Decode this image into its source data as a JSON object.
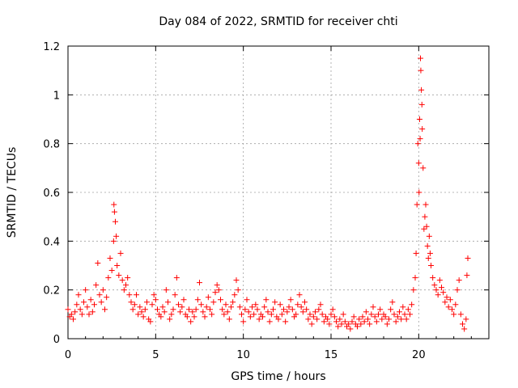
{
  "chart_data": {
    "type": "scatter",
    "title": "Day 084 of 2022, SRMTID for receiver chti",
    "xlabel": "GPS time / hours",
    "ylabel": "SRMTID / TECUs",
    "xlim": [
      0,
      24
    ],
    "ylim": [
      0,
      1.2
    ],
    "xticks": [
      0,
      5,
      10,
      15,
      20
    ],
    "xtick_labels": [
      "0",
      "5",
      "10",
      "15",
      "20"
    ],
    "yticks": [
      0,
      0.2,
      0.4,
      0.6,
      0.8,
      1.0,
      1.2
    ],
    "ytick_labels": [
      "0",
      "0.2",
      "0.4",
      "0.6",
      "0.8",
      "1",
      "1.2"
    ],
    "grid": true,
    "marker": "plus",
    "color": "#ff0000",
    "series": [
      {
        "name": "SRMTID",
        "x": [
          0.0,
          0.1,
          0.2,
          0.3,
          0.4,
          0.5,
          0.6,
          0.7,
          0.8,
          0.9,
          1.0,
          1.1,
          1.2,
          1.3,
          1.4,
          1.5,
          1.6,
          1.7,
          1.8,
          1.9,
          2.0,
          2.1,
          2.2,
          2.3,
          2.4,
          2.5,
          2.6,
          2.62,
          2.65,
          2.7,
          2.75,
          2.8,
          2.9,
          3.0,
          3.1,
          3.2,
          3.3,
          3.4,
          3.5,
          3.6,
          3.7,
          3.8,
          3.9,
          4.0,
          4.1,
          4.2,
          4.3,
          4.4,
          4.5,
          4.6,
          4.7,
          4.8,
          4.9,
          5.0,
          5.1,
          5.2,
          5.3,
          5.4,
          5.5,
          5.6,
          5.7,
          5.8,
          5.9,
          6.0,
          6.1,
          6.2,
          6.3,
          6.4,
          6.5,
          6.6,
          6.7,
          6.8,
          6.9,
          7.0,
          7.1,
          7.2,
          7.3,
          7.4,
          7.5,
          7.6,
          7.7,
          7.8,
          7.9,
          8.0,
          8.1,
          8.2,
          8.3,
          8.4,
          8.5,
          8.6,
          8.7,
          8.8,
          8.9,
          9.0,
          9.1,
          9.2,
          9.3,
          9.4,
          9.5,
          9.6,
          9.7,
          9.8,
          9.9,
          10.0,
          10.1,
          10.2,
          10.3,
          10.4,
          10.5,
          10.6,
          10.7,
          10.8,
          10.9,
          11.0,
          11.1,
          11.2,
          11.3,
          11.4,
          11.5,
          11.6,
          11.7,
          11.8,
          11.9,
          12.0,
          12.1,
          12.2,
          12.3,
          12.4,
          12.5,
          12.6,
          12.7,
          12.8,
          12.9,
          13.0,
          13.1,
          13.2,
          13.3,
          13.4,
          13.5,
          13.6,
          13.7,
          13.8,
          13.9,
          14.0,
          14.1,
          14.2,
          14.3,
          14.4,
          14.5,
          14.6,
          14.7,
          14.8,
          14.9,
          15.0,
          15.1,
          15.2,
          15.3,
          15.4,
          15.5,
          15.6,
          15.7,
          15.8,
          15.9,
          16.0,
          16.1,
          16.2,
          16.3,
          16.4,
          16.5,
          16.6,
          16.7,
          16.8,
          16.9,
          17.0,
          17.1,
          17.2,
          17.3,
          17.4,
          17.5,
          17.6,
          17.7,
          17.8,
          17.9,
          18.0,
          18.1,
          18.2,
          18.3,
          18.4,
          18.5,
          18.6,
          18.7,
          18.8,
          18.9,
          19.0,
          19.1,
          19.2,
          19.3,
          19.4,
          19.5,
          19.6,
          19.7,
          19.8,
          19.85,
          19.9,
          19.95,
          20.0,
          20.02,
          20.05,
          20.08,
          20.1,
          20.12,
          20.15,
          20.18,
          20.2,
          20.25,
          20.3,
          20.35,
          20.4,
          20.45,
          20.5,
          20.55,
          20.6,
          20.65,
          20.7,
          20.8,
          20.9,
          21.0,
          21.1,
          21.2,
          21.3,
          21.4,
          21.5,
          21.6,
          21.7,
          21.8,
          21.9,
          22.0,
          22.1,
          22.2,
          22.3,
          22.4,
          22.5,
          22.6,
          22.7,
          22.75,
          22.8
        ],
        "y": [
          0.12,
          0.09,
          0.1,
          0.08,
          0.11,
          0.14,
          0.18,
          0.12,
          0.1,
          0.15,
          0.2,
          0.13,
          0.1,
          0.16,
          0.11,
          0.14,
          0.22,
          0.31,
          0.18,
          0.15,
          0.2,
          0.12,
          0.17,
          0.25,
          0.33,
          0.28,
          0.4,
          0.55,
          0.52,
          0.48,
          0.42,
          0.3,
          0.26,
          0.35,
          0.24,
          0.2,
          0.22,
          0.25,
          0.18,
          0.15,
          0.12,
          0.14,
          0.18,
          0.1,
          0.13,
          0.11,
          0.09,
          0.12,
          0.15,
          0.08,
          0.07,
          0.14,
          0.18,
          0.16,
          0.12,
          0.1,
          0.09,
          0.13,
          0.11,
          0.2,
          0.15,
          0.08,
          0.1,
          0.12,
          0.18,
          0.25,
          0.14,
          0.11,
          0.13,
          0.16,
          0.1,
          0.09,
          0.12,
          0.07,
          0.11,
          0.09,
          0.12,
          0.16,
          0.23,
          0.14,
          0.11,
          0.09,
          0.13,
          0.17,
          0.12,
          0.1,
          0.15,
          0.19,
          0.22,
          0.2,
          0.16,
          0.12,
          0.1,
          0.14,
          0.11,
          0.08,
          0.13,
          0.15,
          0.18,
          0.24,
          0.2,
          0.13,
          0.1,
          0.07,
          0.12,
          0.16,
          0.11,
          0.09,
          0.13,
          0.1,
          0.14,
          0.12,
          0.08,
          0.1,
          0.09,
          0.13,
          0.16,
          0.11,
          0.07,
          0.1,
          0.12,
          0.15,
          0.09,
          0.08,
          0.14,
          0.1,
          0.12,
          0.07,
          0.11,
          0.13,
          0.16,
          0.12,
          0.09,
          0.1,
          0.14,
          0.18,
          0.13,
          0.11,
          0.15,
          0.12,
          0.08,
          0.1,
          0.06,
          0.09,
          0.11,
          0.08,
          0.12,
          0.14,
          0.1,
          0.07,
          0.09,
          0.08,
          0.06,
          0.1,
          0.12,
          0.09,
          0.07,
          0.05,
          0.08,
          0.06,
          0.1,
          0.07,
          0.05,
          0.06,
          0.04,
          0.07,
          0.09,
          0.06,
          0.05,
          0.08,
          0.06,
          0.09,
          0.07,
          0.11,
          0.08,
          0.06,
          0.1,
          0.13,
          0.09,
          0.07,
          0.1,
          0.12,
          0.08,
          0.1,
          0.09,
          0.06,
          0.08,
          0.12,
          0.15,
          0.1,
          0.07,
          0.09,
          0.11,
          0.08,
          0.13,
          0.1,
          0.08,
          0.12,
          0.1,
          0.14,
          0.2,
          0.25,
          0.35,
          0.55,
          0.8,
          0.72,
          0.6,
          0.9,
          0.82,
          1.15,
          1.1,
          1.02,
          0.96,
          0.86,
          0.7,
          0.45,
          0.5,
          0.55,
          0.46,
          0.38,
          0.33,
          0.42,
          0.35,
          0.3,
          0.25,
          0.22,
          0.2,
          0.18,
          0.24,
          0.21,
          0.19,
          0.15,
          0.17,
          0.13,
          0.16,
          0.12,
          0.1,
          0.14,
          0.2,
          0.24,
          0.1,
          0.06,
          0.04,
          0.08,
          0.26,
          0.33
        ]
      }
    ]
  }
}
